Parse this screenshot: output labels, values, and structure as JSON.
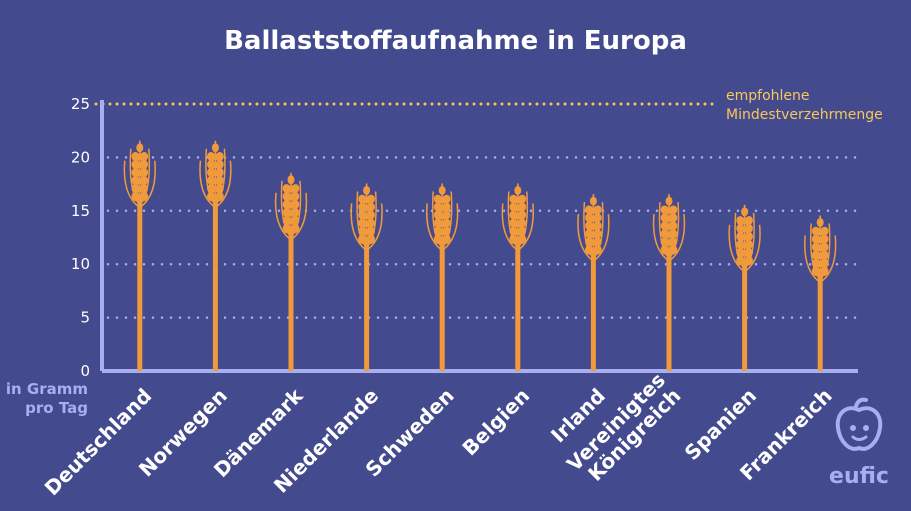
{
  "title": "Ballaststoffaufnahme in Europa",
  "unit_label": [
    "in Gramm",
    "pro Tag"
  ],
  "recommendation_label": [
    "empfohlene",
    "Mindestverzehrmenge"
  ],
  "logo_text": "eufic",
  "colors": {
    "background": "#444a8e",
    "bar": "#f09a3c",
    "axis": "#a9aef0",
    "recommendation": "#f7c85b"
  },
  "chart_data": {
    "type": "bar",
    "title": "Ballaststoffaufnahme in Europa",
    "xlabel": "",
    "ylabel": "in Gramm pro Tag",
    "ylim": [
      0,
      25
    ],
    "yticks": [
      0,
      5,
      10,
      15,
      20,
      25
    ],
    "grid": true,
    "categories": [
      "Deutschland",
      "Norwegen",
      "Dänemark",
      "Niederlande",
      "Schweden",
      "Belgien",
      "Irland",
      "Vereinigtes Königreich",
      "Spanien",
      "Frankreich"
    ],
    "category_label_lines": [
      [
        "Deutschland"
      ],
      [
        "Norwegen"
      ],
      [
        "Dänemark"
      ],
      [
        "Niederlande"
      ],
      [
        "Schweden"
      ],
      [
        "Belgien"
      ],
      [
        "Irland"
      ],
      [
        "Vereinigtes",
        "Königreich"
      ],
      [
        "Spanien"
      ],
      [
        "Frankreich"
      ]
    ],
    "values": [
      21,
      21,
      18,
      17,
      17,
      17,
      16,
      16,
      15,
      14
    ],
    "reference_line": {
      "value": 25,
      "label": "empfohlene Mindestverzehrmenge"
    }
  }
}
